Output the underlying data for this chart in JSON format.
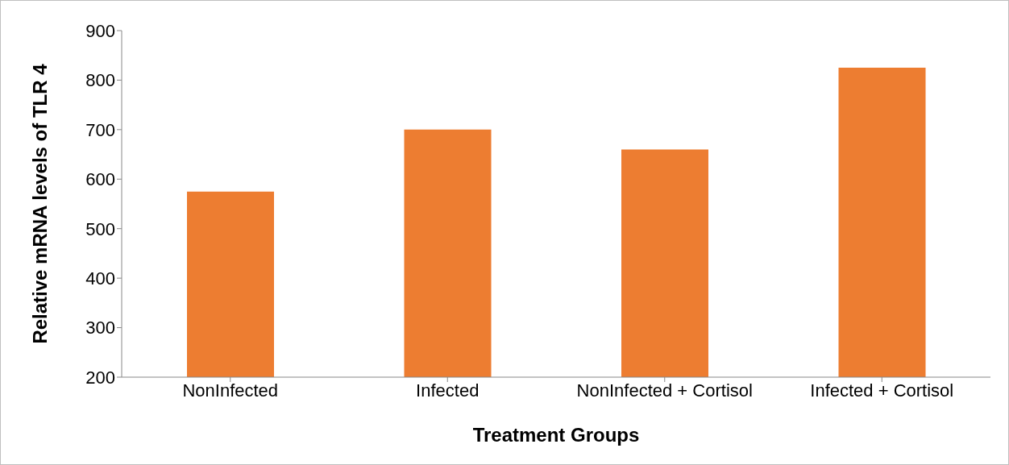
{
  "chart_data": {
    "type": "bar",
    "xlabel": "Treatment Groups",
    "ylabel": "Relative mRNA levels of TLR 4",
    "categories": [
      "NonInfected",
      "Infected",
      "NonInfected + Cortisol",
      "Infected + Cortisol"
    ],
    "values": [
      575,
      700,
      660,
      825
    ],
    "color": "#ed7d31",
    "ylim": [
      200,
      900
    ],
    "yticks": [
      200,
      300,
      400,
      500,
      600,
      700,
      800,
      900
    ],
    "grid": false,
    "legend": false
  }
}
